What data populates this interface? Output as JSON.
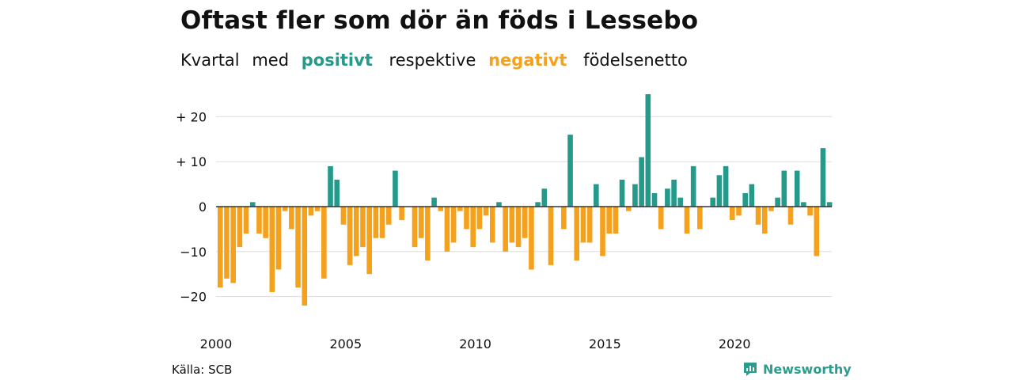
{
  "title": "Oftast fler som dör än föds i Lessebo",
  "subtitle": {
    "part1": "Kvartal",
    "part2": "med",
    "positive": "positivt",
    "part3": "respektive",
    "negative": "negativt",
    "part4": "födelsenetto"
  },
  "source": "Källa: SCB",
  "brand": "Newsworthy",
  "colors": {
    "positive": "#25998a",
    "negative": "#f4a11d",
    "grid": "#dddddd",
    "zero_line": "#333333",
    "text": "#111111"
  },
  "chart_data": {
    "type": "bar",
    "x_start": "2000 Q1",
    "frequency": "quarterly",
    "xticks": [
      "2000",
      "2005",
      "2010",
      "2015",
      "2020"
    ],
    "yticks": [
      "−20",
      "−10",
      "0",
      "+ 10",
      "+ 20"
    ],
    "ylim": [
      -25,
      25
    ],
    "grid": true,
    "values": [
      -18,
      -16,
      -17,
      -9,
      -6,
      1,
      -6,
      -7,
      -19,
      -14,
      -1,
      -5,
      -18,
      -22,
      -2,
      -1,
      -16,
      9,
      6,
      -4,
      -13,
      -11,
      -9,
      -15,
      -7,
      -7,
      -4,
      8,
      -3,
      0,
      -9,
      -7,
      -12,
      2,
      -1,
      -10,
      -8,
      -1,
      -5,
      -9,
      -5,
      -2,
      -8,
      1,
      -10,
      -8,
      -9,
      -7,
      -14,
      1,
      4,
      -13,
      0,
      -5,
      16,
      -12,
      -8,
      -8,
      5,
      -11,
      -6,
      -6,
      6,
      -1,
      5,
      11,
      25,
      3,
      -5,
      4,
      6,
      2,
      -6,
      9,
      -5,
      0,
      2,
      7,
      9,
      -3,
      -2,
      3,
      5,
      -4,
      -6,
      -1,
      2,
      8,
      -4,
      8,
      1,
      -2,
      -11,
      13,
      1
    ]
  }
}
